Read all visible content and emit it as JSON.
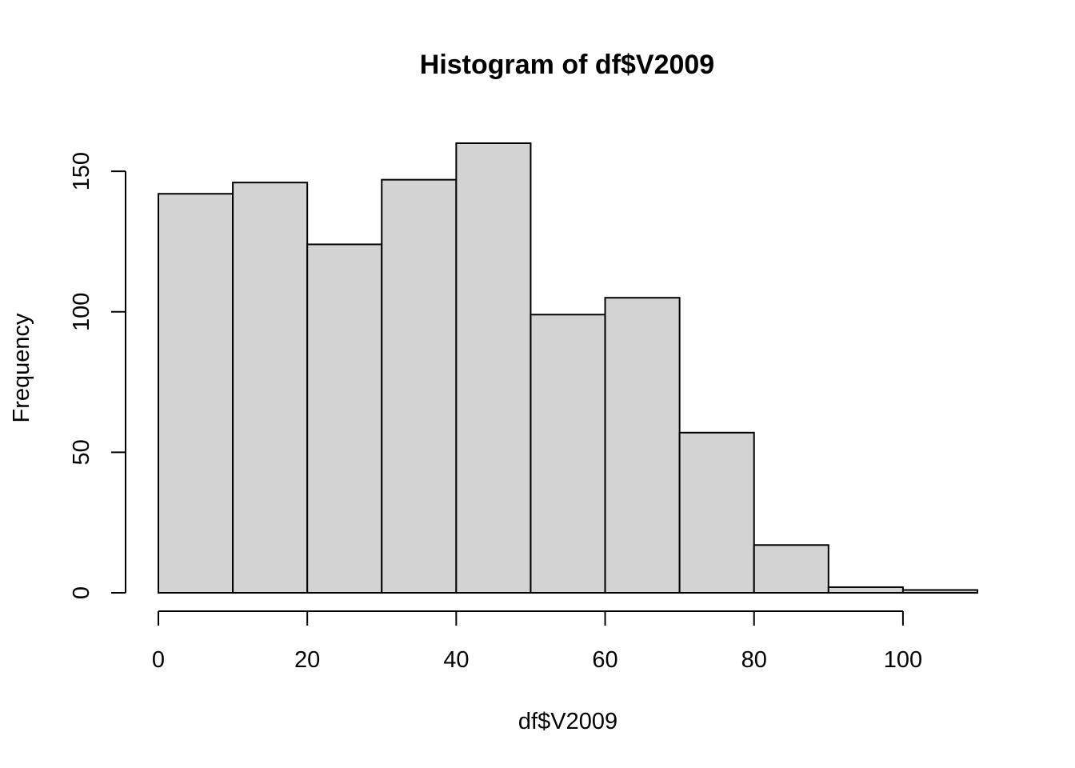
{
  "chart_data": {
    "type": "bar",
    "histogram": true,
    "title": "Histogram of df$V2009",
    "xlabel": "df$V2009",
    "ylabel": "Frequency",
    "bin_edges": [
      0,
      10,
      20,
      30,
      40,
      50,
      60,
      70,
      80,
      90,
      100,
      110
    ],
    "values": [
      142,
      146,
      124,
      147,
      160,
      99,
      105,
      57,
      17,
      2,
      1
    ],
    "xlim": [
      0,
      110
    ],
    "ylim": [
      0,
      160
    ],
    "x_ticks": [
      0,
      20,
      40,
      60,
      80,
      100
    ],
    "x_tick_labels": [
      "0",
      "20",
      "40",
      "60",
      "80",
      "100"
    ],
    "y_ticks": [
      0,
      50,
      100,
      150
    ],
    "y_tick_labels": [
      "0",
      "50",
      "100",
      "150"
    ],
    "bar_fill": "#d3d3d3",
    "bar_stroke": "#000000",
    "grid": false,
    "legend": "none"
  }
}
